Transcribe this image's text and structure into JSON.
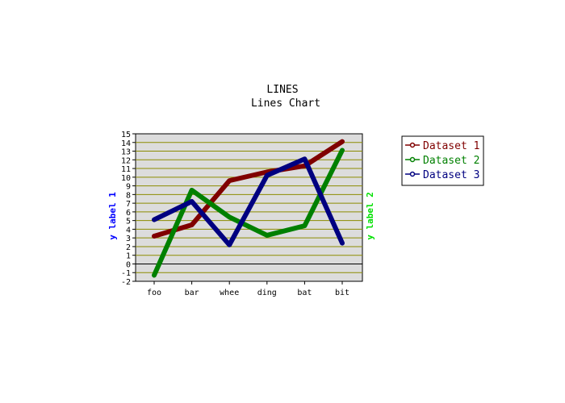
{
  "chart_data": {
    "type": "line",
    "title": "LINES",
    "subtitle": "Lines Chart",
    "categories": [
      "foo",
      "bar",
      "whee",
      "ding",
      "bat",
      "bit"
    ],
    "ylim": [
      -2,
      15
    ],
    "yticks": [
      -2,
      -1,
      0,
      1,
      2,
      3,
      4,
      5,
      6,
      7,
      8,
      9,
      10,
      11,
      12,
      13,
      14,
      15
    ],
    "ylabel": "y label 1",
    "ylabel2": "y label 2",
    "grid": true,
    "legend_position": "right",
    "series": [
      {
        "name": "Dataset 1",
        "color": "#800000",
        "values": [
          3.2,
          4.5,
          9.6,
          10.6,
          11.3,
          14.1
        ]
      },
      {
        "name": "Dataset 2",
        "color": "#008000",
        "values": [
          -1.3,
          8.5,
          5.4,
          3.3,
          4.4,
          13.1
        ]
      },
      {
        "name": "Dataset 3",
        "color": "#000080",
        "values": [
          5.1,
          7.2,
          2.2,
          10.2,
          12.1,
          2.4
        ]
      }
    ],
    "colors": {
      "plot_background": "#dcdcdc",
      "grid": "#8b8b00",
      "ylabel1_color": "#0000ff",
      "ylabel2_color": "#00e000"
    }
  }
}
